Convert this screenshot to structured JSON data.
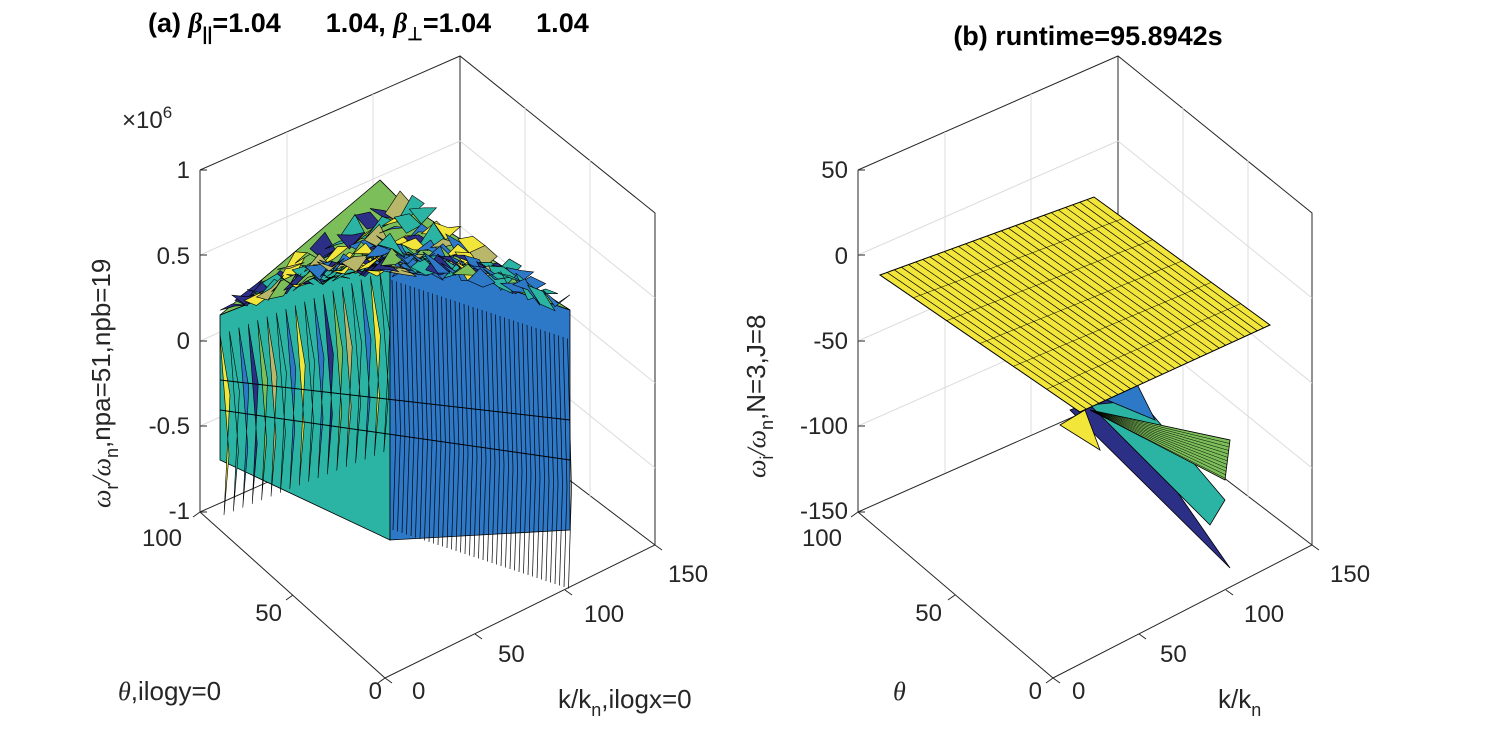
{
  "colors": {
    "yellow": "#f2e63a",
    "teal": "#2bb3a3",
    "blue": "#2e78c8",
    "navy": "#2c2f86",
    "green": "#7cbf5a",
    "olive": "#b9b86a"
  },
  "chart_data": [
    {
      "type": "surface",
      "title": {
        "prefix": "(a) ",
        "beta_par": "β",
        "par_sub": "||",
        "par_vals": "=1.04      1.04, ",
        "beta_perp": "β",
        "perp_sub": "⊥",
        "perp_vals": "=1.04      1.04"
      },
      "zlabel": {
        "w1": "ω",
        "sub1": "r",
        "mid": "/ω",
        "sub2": "n",
        "rest": ",npa=51,npb=19"
      },
      "xlabel": {
        "k": "k/k",
        "sub": "n",
        "rest": ",ilogx=0"
      },
      "ylabel": {
        "theta": "θ",
        "rest": ",ilogy=0"
      },
      "z_multiplier": "×10",
      "z_exponent": "6",
      "x_ticks": [
        "0",
        "50",
        "100",
        "150"
      ],
      "y_ticks": [
        "0",
        "50",
        "100"
      ],
      "z_ticks": [
        "-1",
        "-0.5",
        "0",
        "0.5",
        "1"
      ],
      "xlim": [
        0,
        150
      ],
      "ylim": [
        0,
        100
      ],
      "zlim": [
        -1,
        1
      ],
      "description_values": {
        "beta_parallel": [
          1.04,
          1.04
        ],
        "beta_perp": [
          1.04,
          1.04
        ],
        "npa": 51,
        "npb": 19
      }
    },
    {
      "type": "surface",
      "title": "(b) runtime=95.8942s",
      "zlabel": {
        "w1": "ω",
        "sub1": "i",
        "mid": "/ω",
        "sub2": "n",
        "rest": ",N=3,J=8"
      },
      "xlabel": {
        "k": "k/k",
        "sub": "n"
      },
      "ylabel": {
        "theta": "θ"
      },
      "x_ticks": [
        "0",
        "50",
        "100",
        "150"
      ],
      "y_ticks": [
        "0",
        "50",
        "100"
      ],
      "z_ticks": [
        "-150",
        "-100",
        "-50",
        "0",
        "50"
      ],
      "xlim": [
        0,
        150
      ],
      "ylim": [
        0,
        100
      ],
      "zlim": [
        -150,
        50
      ],
      "flat_sheet_value": -20
    }
  ]
}
